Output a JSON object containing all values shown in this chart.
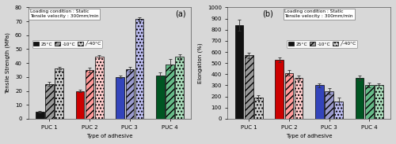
{
  "chart_a": {
    "title": "(a)",
    "ylabel": "Tensile Strength (MPa)",
    "xlabel": "Type of adhesive",
    "ylim": [
      0,
      80
    ],
    "yticks": [
      0,
      10,
      20,
      30,
      40,
      50,
      60,
      70,
      80
    ],
    "categories": [
      "PUC 1",
      "PUC 2",
      "PUC 3",
      "PUC 4"
    ],
    "series_25": [
      5.0,
      20.0,
      30.0,
      31.0
    ],
    "series_10": [
      25.0,
      35.0,
      35.5,
      39.0
    ],
    "series_40": [
      36.0,
      44.5,
      71.5,
      44.5
    ],
    "err_25": [
      0.5,
      0.8,
      0.8,
      2.5
    ],
    "err_10": [
      1.5,
      1.5,
      1.5,
      4.0
    ],
    "err_40": [
      1.5,
      1.0,
      1.5,
      2.0
    ],
    "info_text": "Loading condition : Static\nTensile velocity : 300mm/min",
    "legend_loc": "upper_left",
    "title_loc": "upper_right"
  },
  "chart_b": {
    "title": "(b)",
    "ylabel": "Elongation (%)",
    "xlabel": "Type of adhesive",
    "ylim": [
      0,
      1000
    ],
    "yticks": [
      0,
      100,
      200,
      300,
      400,
      500,
      600,
      700,
      800,
      900,
      1000
    ],
    "categories": [
      "PUC 1",
      "PUC 2",
      "PUC 3",
      "PUC 4"
    ],
    "series_25": [
      840,
      530,
      300,
      365
    ],
    "series_10": [
      570,
      410,
      248,
      305
    ],
    "series_40": [
      190,
      368,
      158,
      300
    ],
    "err_25": [
      50,
      20,
      20,
      20
    ],
    "err_10": [
      25,
      25,
      30,
      20
    ],
    "err_40": [
      20,
      20,
      35,
      20
    ],
    "info_text": "Loading condition : Static\nTensile velocity : 300mm/min",
    "legend_loc": "upper_right",
    "title_loc": "upper_left"
  },
  "solid_colors": [
    "#111111",
    "#cc0000",
    "#3344bb",
    "#005522"
  ],
  "mid_colors": [
    "#999999",
    "#ff9999",
    "#9999cc",
    "#66bb88"
  ],
  "light_colors": [
    "#cccccc",
    "#ffcccc",
    "#bbbbee",
    "#aaddbb"
  ],
  "legend_labels": [
    "25°C",
    "-10°C",
    "╱-40°C"
  ],
  "bg_color": "#d8d8d8"
}
